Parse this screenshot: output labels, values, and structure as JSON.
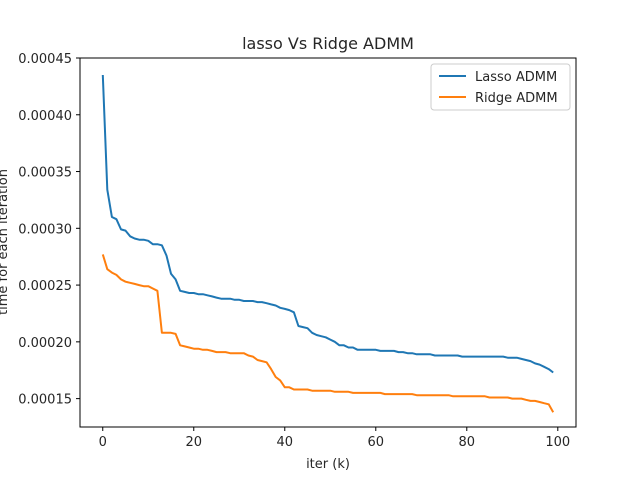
{
  "chart_data": {
    "type": "line",
    "title": "lasso Vs Ridge ADMM",
    "xlabel": "iter (k)",
    "ylabel": "time for each iteration",
    "xlim": [
      -5,
      104
    ],
    "ylim": [
      0.000125,
      0.00045
    ],
    "xticks": [
      0,
      20,
      40,
      60,
      80,
      100
    ],
    "xtick_labels": [
      "0",
      "20",
      "40",
      "60",
      "80",
      "100"
    ],
    "yticks": [
      0.00015,
      0.0002,
      0.00025,
      0.0003,
      0.00035,
      0.0004,
      0.00045
    ],
    "ytick_labels": [
      "0.00015",
      "0.00020",
      "0.00025",
      "0.00030",
      "0.00035",
      "0.00040",
      "0.00045"
    ],
    "grid": false,
    "legend": "top-right",
    "series": [
      {
        "name": "Lasso ADMM",
        "color": "#1f77b4",
        "x": [
          0,
          1,
          2,
          3,
          4,
          5,
          6,
          7,
          8,
          9,
          10,
          11,
          12,
          13,
          14,
          15,
          16,
          17,
          18,
          19,
          20,
          21,
          22,
          23,
          24,
          25,
          26,
          27,
          28,
          29,
          30,
          31,
          32,
          33,
          34,
          35,
          36,
          37,
          38,
          39,
          40,
          41,
          42,
          43,
          44,
          45,
          46,
          47,
          48,
          49,
          50,
          51,
          52,
          53,
          54,
          55,
          56,
          57,
          58,
          59,
          60,
          61,
          62,
          63,
          64,
          65,
          66,
          67,
          68,
          69,
          70,
          71,
          72,
          73,
          74,
          75,
          76,
          77,
          78,
          79,
          80,
          81,
          82,
          83,
          84,
          85,
          86,
          87,
          88,
          89,
          90,
          91,
          92,
          93,
          94,
          95,
          96,
          97,
          98,
          99
        ],
        "values": [
          0.000435,
          0.000334,
          0.00031,
          0.000308,
          0.000299,
          0.000298,
          0.000293,
          0.000291,
          0.00029,
          0.00029,
          0.000289,
          0.000286,
          0.000286,
          0.000285,
          0.000276,
          0.00026,
          0.000255,
          0.000245,
          0.000244,
          0.000243,
          0.000243,
          0.000242,
          0.000242,
          0.000241,
          0.00024,
          0.000239,
          0.000238,
          0.000238,
          0.000238,
          0.000237,
          0.000237,
          0.000236,
          0.000236,
          0.000236,
          0.000235,
          0.000235,
          0.000234,
          0.000233,
          0.000232,
          0.00023,
          0.000229,
          0.000228,
          0.000226,
          0.000214,
          0.000213,
          0.000212,
          0.000208,
          0.000206,
          0.000205,
          0.000204,
          0.000202,
          0.0002,
          0.000197,
          0.000197,
          0.000195,
          0.000195,
          0.000193,
          0.000193,
          0.000193,
          0.000193,
          0.000193,
          0.000192,
          0.000192,
          0.000192,
          0.000192,
          0.000191,
          0.000191,
          0.00019,
          0.00019,
          0.000189,
          0.000189,
          0.000189,
          0.000189,
          0.000188,
          0.000188,
          0.000188,
          0.000188,
          0.000188,
          0.000188,
          0.000187,
          0.000187,
          0.000187,
          0.000187,
          0.000187,
          0.000187,
          0.000187,
          0.000187,
          0.000187,
          0.000187,
          0.000186,
          0.000186,
          0.000186,
          0.000185,
          0.000184,
          0.000183,
          0.000181,
          0.00018,
          0.000178,
          0.000176,
          0.000173
        ]
      },
      {
        "name": "Ridge ADMM",
        "color": "#ff7f0e",
        "x": [
          0,
          1,
          2,
          3,
          4,
          5,
          6,
          7,
          8,
          9,
          10,
          11,
          12,
          13,
          14,
          15,
          16,
          17,
          18,
          19,
          20,
          21,
          22,
          23,
          24,
          25,
          26,
          27,
          28,
          29,
          30,
          31,
          32,
          33,
          34,
          35,
          36,
          37,
          38,
          39,
          40,
          41,
          42,
          43,
          44,
          45,
          46,
          47,
          48,
          49,
          50,
          51,
          52,
          53,
          54,
          55,
          56,
          57,
          58,
          59,
          60,
          61,
          62,
          63,
          64,
          65,
          66,
          67,
          68,
          69,
          70,
          71,
          72,
          73,
          74,
          75,
          76,
          77,
          78,
          79,
          80,
          81,
          82,
          83,
          84,
          85,
          86,
          87,
          88,
          89,
          90,
          91,
          92,
          93,
          94,
          95,
          96,
          97,
          98,
          99
        ],
        "values": [
          0.000277,
          0.000264,
          0.000261,
          0.000259,
          0.000255,
          0.000253,
          0.000252,
          0.000251,
          0.00025,
          0.000249,
          0.000249,
          0.000247,
          0.000245,
          0.000208,
          0.000208,
          0.000208,
          0.000207,
          0.000197,
          0.000196,
          0.000195,
          0.000194,
          0.000194,
          0.000193,
          0.000193,
          0.000192,
          0.000191,
          0.000191,
          0.000191,
          0.00019,
          0.00019,
          0.00019,
          0.00019,
          0.000188,
          0.000187,
          0.000184,
          0.000183,
          0.000182,
          0.000176,
          0.000169,
          0.000166,
          0.00016,
          0.00016,
          0.000158,
          0.000158,
          0.000158,
          0.000158,
          0.000157,
          0.000157,
          0.000157,
          0.000157,
          0.000157,
          0.000156,
          0.000156,
          0.000156,
          0.000156,
          0.000155,
          0.000155,
          0.000155,
          0.000155,
          0.000155,
          0.000155,
          0.000155,
          0.000154,
          0.000154,
          0.000154,
          0.000154,
          0.000154,
          0.000154,
          0.000154,
          0.000153,
          0.000153,
          0.000153,
          0.000153,
          0.000153,
          0.000153,
          0.000153,
          0.000153,
          0.000152,
          0.000152,
          0.000152,
          0.000152,
          0.000152,
          0.000152,
          0.000152,
          0.000152,
          0.000151,
          0.000151,
          0.000151,
          0.000151,
          0.000151,
          0.00015,
          0.00015,
          0.00015,
          0.000149,
          0.000148,
          0.000148,
          0.000147,
          0.000146,
          0.000145,
          0.000138
        ]
      }
    ]
  }
}
